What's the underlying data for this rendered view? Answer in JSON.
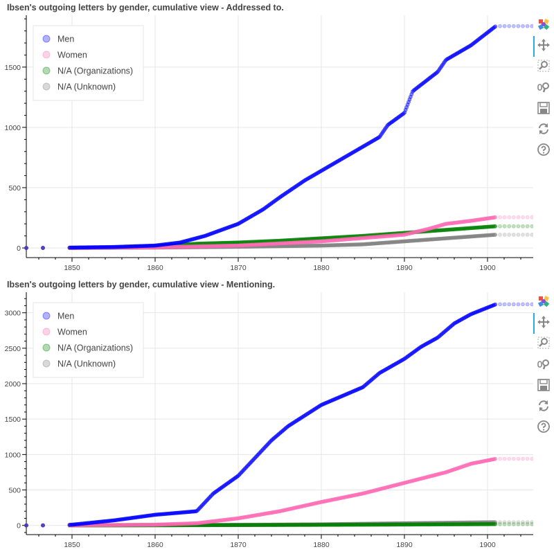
{
  "chart_data": [
    {
      "type": "scatter",
      "title": "Ibsen's outgoing letters by gender, cumulative view - Addressed to.",
      "xlabel": "",
      "ylabel": "",
      "xlim": [
        1844.5,
        1905.5
      ],
      "ylim": [
        -80,
        1930
      ],
      "x_ticks": [
        1850,
        1860,
        1870,
        1880,
        1890,
        1900
      ],
      "y_ticks": [
        0,
        500,
        1000,
        1500
      ],
      "grid": true,
      "legend": {
        "position": "top-left",
        "entries": [
          "Men",
          "Women",
          "N/A (Organizations)",
          "N/A (Unknown)"
        ]
      },
      "series": [
        {
          "name": "Men",
          "color": "#0000ff",
          "x": [
            1844.5,
            1848.5,
            1855,
            1860,
            1863,
            1866,
            1870,
            1873,
            1875,
            1878,
            1880,
            1883,
            1885,
            1887,
            1888,
            1890,
            1891,
            1894,
            1895,
            1898,
            1901
          ],
          "y": [
            0,
            2,
            8,
            20,
            45,
            100,
            200,
            320,
            420,
            560,
            640,
            760,
            840,
            920,
            1020,
            1120,
            1300,
            1460,
            1560,
            1680,
            1840
          ]
        },
        {
          "name": "Women",
          "color": "#ff69b4",
          "x": [
            1844.5,
            1848.5,
            1860,
            1870,
            1880,
            1890,
            1893,
            1895,
            1898,
            1901
          ],
          "y": [
            0,
            0,
            5,
            20,
            55,
            110,
            160,
            200,
            225,
            255
          ]
        },
        {
          "name": "N/A (Organizations)",
          "color": "#008000",
          "x": [
            1844.5,
            1848.5,
            1855,
            1860,
            1865,
            1870,
            1875,
            1880,
            1885,
            1890,
            1895,
            1901
          ],
          "y": [
            0,
            0,
            3,
            15,
            35,
            45,
            60,
            80,
            100,
            125,
            150,
            180
          ]
        },
        {
          "name": "N/A (Unknown)",
          "color": "#808080",
          "x": [
            1844.5,
            1848.5,
            1860,
            1870,
            1880,
            1885,
            1890,
            1895,
            1901
          ],
          "y": [
            0,
            0,
            3,
            10,
            20,
            30,
            55,
            80,
            110
          ]
        }
      ]
    },
    {
      "type": "scatter",
      "title": "Ibsen's outgoing letters by gender, cumulative view - Mentioning.",
      "xlabel": "",
      "ylabel": "",
      "xlim": [
        1844.5,
        1905.5
      ],
      "ylim": [
        -130,
        3290
      ],
      "x_ticks": [
        1850,
        1860,
        1870,
        1880,
        1890,
        1900
      ],
      "y_ticks": [
        0,
        500,
        1000,
        1500,
        2000,
        2500,
        3000
      ],
      "grid": true,
      "legend": {
        "position": "top-left",
        "entries": [
          "Men",
          "Women",
          "N/A (Organizations)",
          "N/A (Unknown)"
        ]
      },
      "series": [
        {
          "name": "Men",
          "color": "#0000ff",
          "x": [
            1844.5,
            1848.5,
            1850,
            1855,
            1860,
            1865,
            1867,
            1870,
            1872,
            1874,
            1876,
            1878,
            1880,
            1883,
            1885,
            1887,
            1890,
            1892,
            1894,
            1896,
            1898,
            1901
          ],
          "y": [
            0,
            2,
            10,
            70,
            150,
            200,
            450,
            700,
            950,
            1200,
            1400,
            1550,
            1700,
            1850,
            1950,
            2150,
            2350,
            2520,
            2650,
            2850,
            2980,
            3120
          ]
        },
        {
          "name": "Women",
          "color": "#ff69b4",
          "x": [
            1844.5,
            1848.5,
            1860,
            1865,
            1870,
            1875,
            1880,
            1885,
            1890,
            1895,
            1898,
            1901
          ],
          "y": [
            0,
            0,
            10,
            30,
            100,
            200,
            330,
            450,
            600,
            750,
            870,
            940
          ]
        },
        {
          "name": "N/A (Organizations)",
          "color": "#008000",
          "x": [
            1844.5,
            1848.5,
            1860,
            1870,
            1880,
            1890,
            1901
          ],
          "y": [
            0,
            0,
            2,
            5,
            8,
            12,
            18
          ]
        },
        {
          "name": "N/A (Unknown)",
          "color": "#808080",
          "x": [
            1844.5,
            1848.5,
            1860,
            1870,
            1880,
            1890,
            1901
          ],
          "y": [
            0,
            0,
            3,
            8,
            15,
            30,
            45
          ]
        }
      ]
    }
  ],
  "toolbar": {
    "items": [
      {
        "icon": "bokeh-logo-icon"
      },
      {
        "icon": "pan-icon",
        "active": true
      },
      {
        "icon": "box-zoom-icon"
      },
      {
        "icon": "wheel-zoom-icon"
      },
      {
        "icon": "save-icon"
      },
      {
        "icon": "reset-icon"
      },
      {
        "icon": "help-icon"
      }
    ]
  }
}
